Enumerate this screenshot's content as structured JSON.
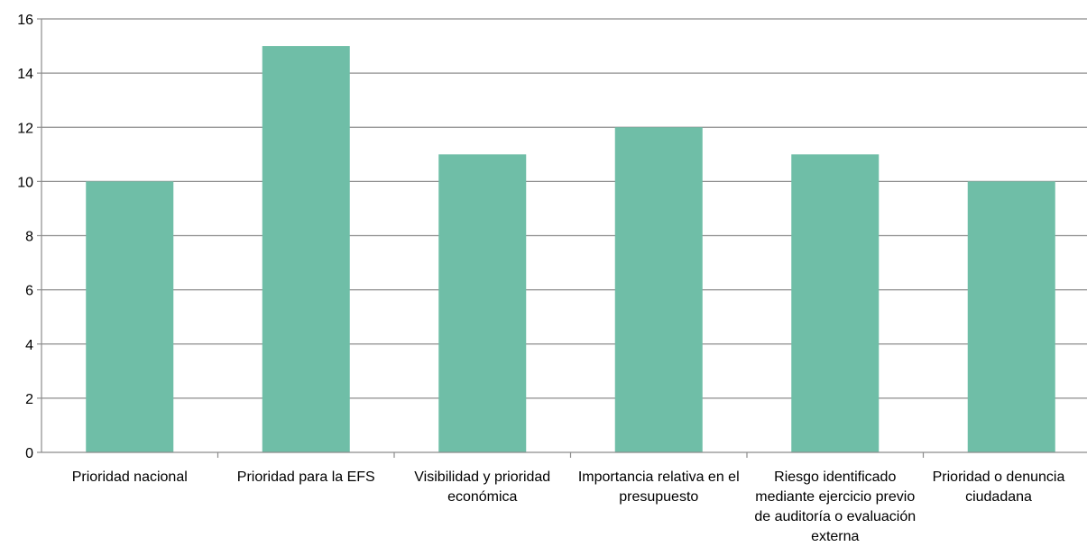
{
  "chart_data": {
    "type": "bar",
    "categories": [
      "Prioridad nacional",
      "Prioridad para la EFS",
      "Visibilidad y prioridad económica",
      "Importancia relativa en el presupuesto",
      "Riesgo identificado mediante ejercicio previo de auditoría o evaluación externa",
      "Prioridad o denuncia ciudadana"
    ],
    "values": [
      10,
      15,
      11,
      12,
      11,
      10
    ],
    "yticks": [
      "0",
      "2",
      "4",
      "6",
      "8",
      "10",
      "12",
      "14",
      "16"
    ],
    "ylim": [
      0,
      16
    ],
    "grid": true,
    "legend": "none",
    "colors": {
      "bar": "#6fbea7",
      "grid": "#8c8c8c",
      "axis": "#8c8c8c"
    }
  }
}
